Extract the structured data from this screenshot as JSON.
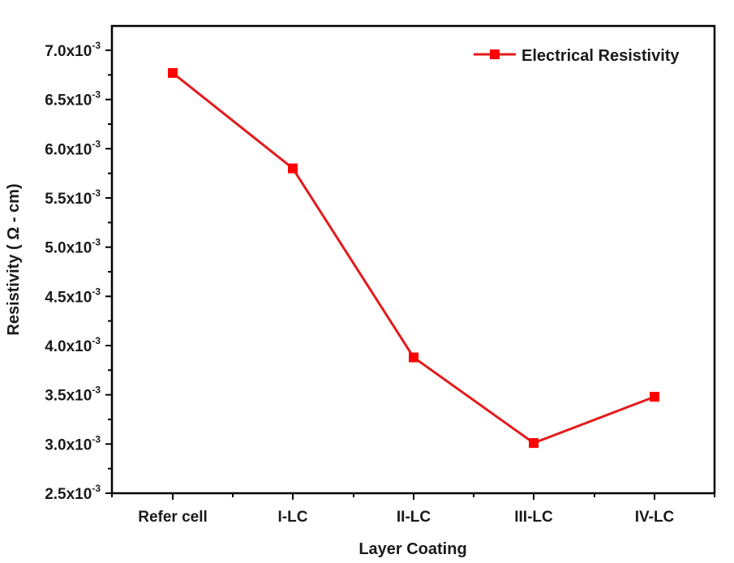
{
  "chart_data": {
    "type": "line",
    "title": "",
    "xlabel": "Layer Coating",
    "ylabel": "Resistivity ( Ω - cm)",
    "categories": [
      "Refer cell",
      "I-LC",
      "II-LC",
      "III-LC",
      "IV-LC"
    ],
    "series": [
      {
        "name": "Electrical Resistivity",
        "color": "#e31a1c",
        "marker": "square",
        "values": [
          0.00677,
          0.0058,
          0.00388,
          0.00301,
          0.00348
        ]
      }
    ],
    "ylim": [
      0.0025,
      0.0072
    ],
    "yticks": [
      0.0025,
      0.003,
      0.0035,
      0.004,
      0.0045,
      0.005,
      0.0055,
      0.006,
      0.0065,
      0.007
    ],
    "ytick_labels": [
      {
        "mant": "2.5x10",
        "exp": "-3"
      },
      {
        "mant": "3.0x10",
        "exp": "-3"
      },
      {
        "mant": "3.5x10",
        "exp": "-3"
      },
      {
        "mant": "4.0x10",
        "exp": "-3"
      },
      {
        "mant": "4.5x10",
        "exp": "-3"
      },
      {
        "mant": "5.0x10",
        "exp": "-3"
      },
      {
        "mant": "5.5x10",
        "exp": "-3"
      },
      {
        "mant": "6.0x10",
        "exp": "-3"
      },
      {
        "mant": "6.5x10",
        "exp": "-3"
      },
      {
        "mant": "7.0x10",
        "exp": "-3"
      }
    ],
    "grid": false,
    "legend_position": "upper right"
  },
  "legend": {
    "label": "Electrical Resistivity"
  },
  "axes": {
    "x_title": "Layer Coating",
    "y_title": "Resistivity ( Ω - cm)"
  }
}
